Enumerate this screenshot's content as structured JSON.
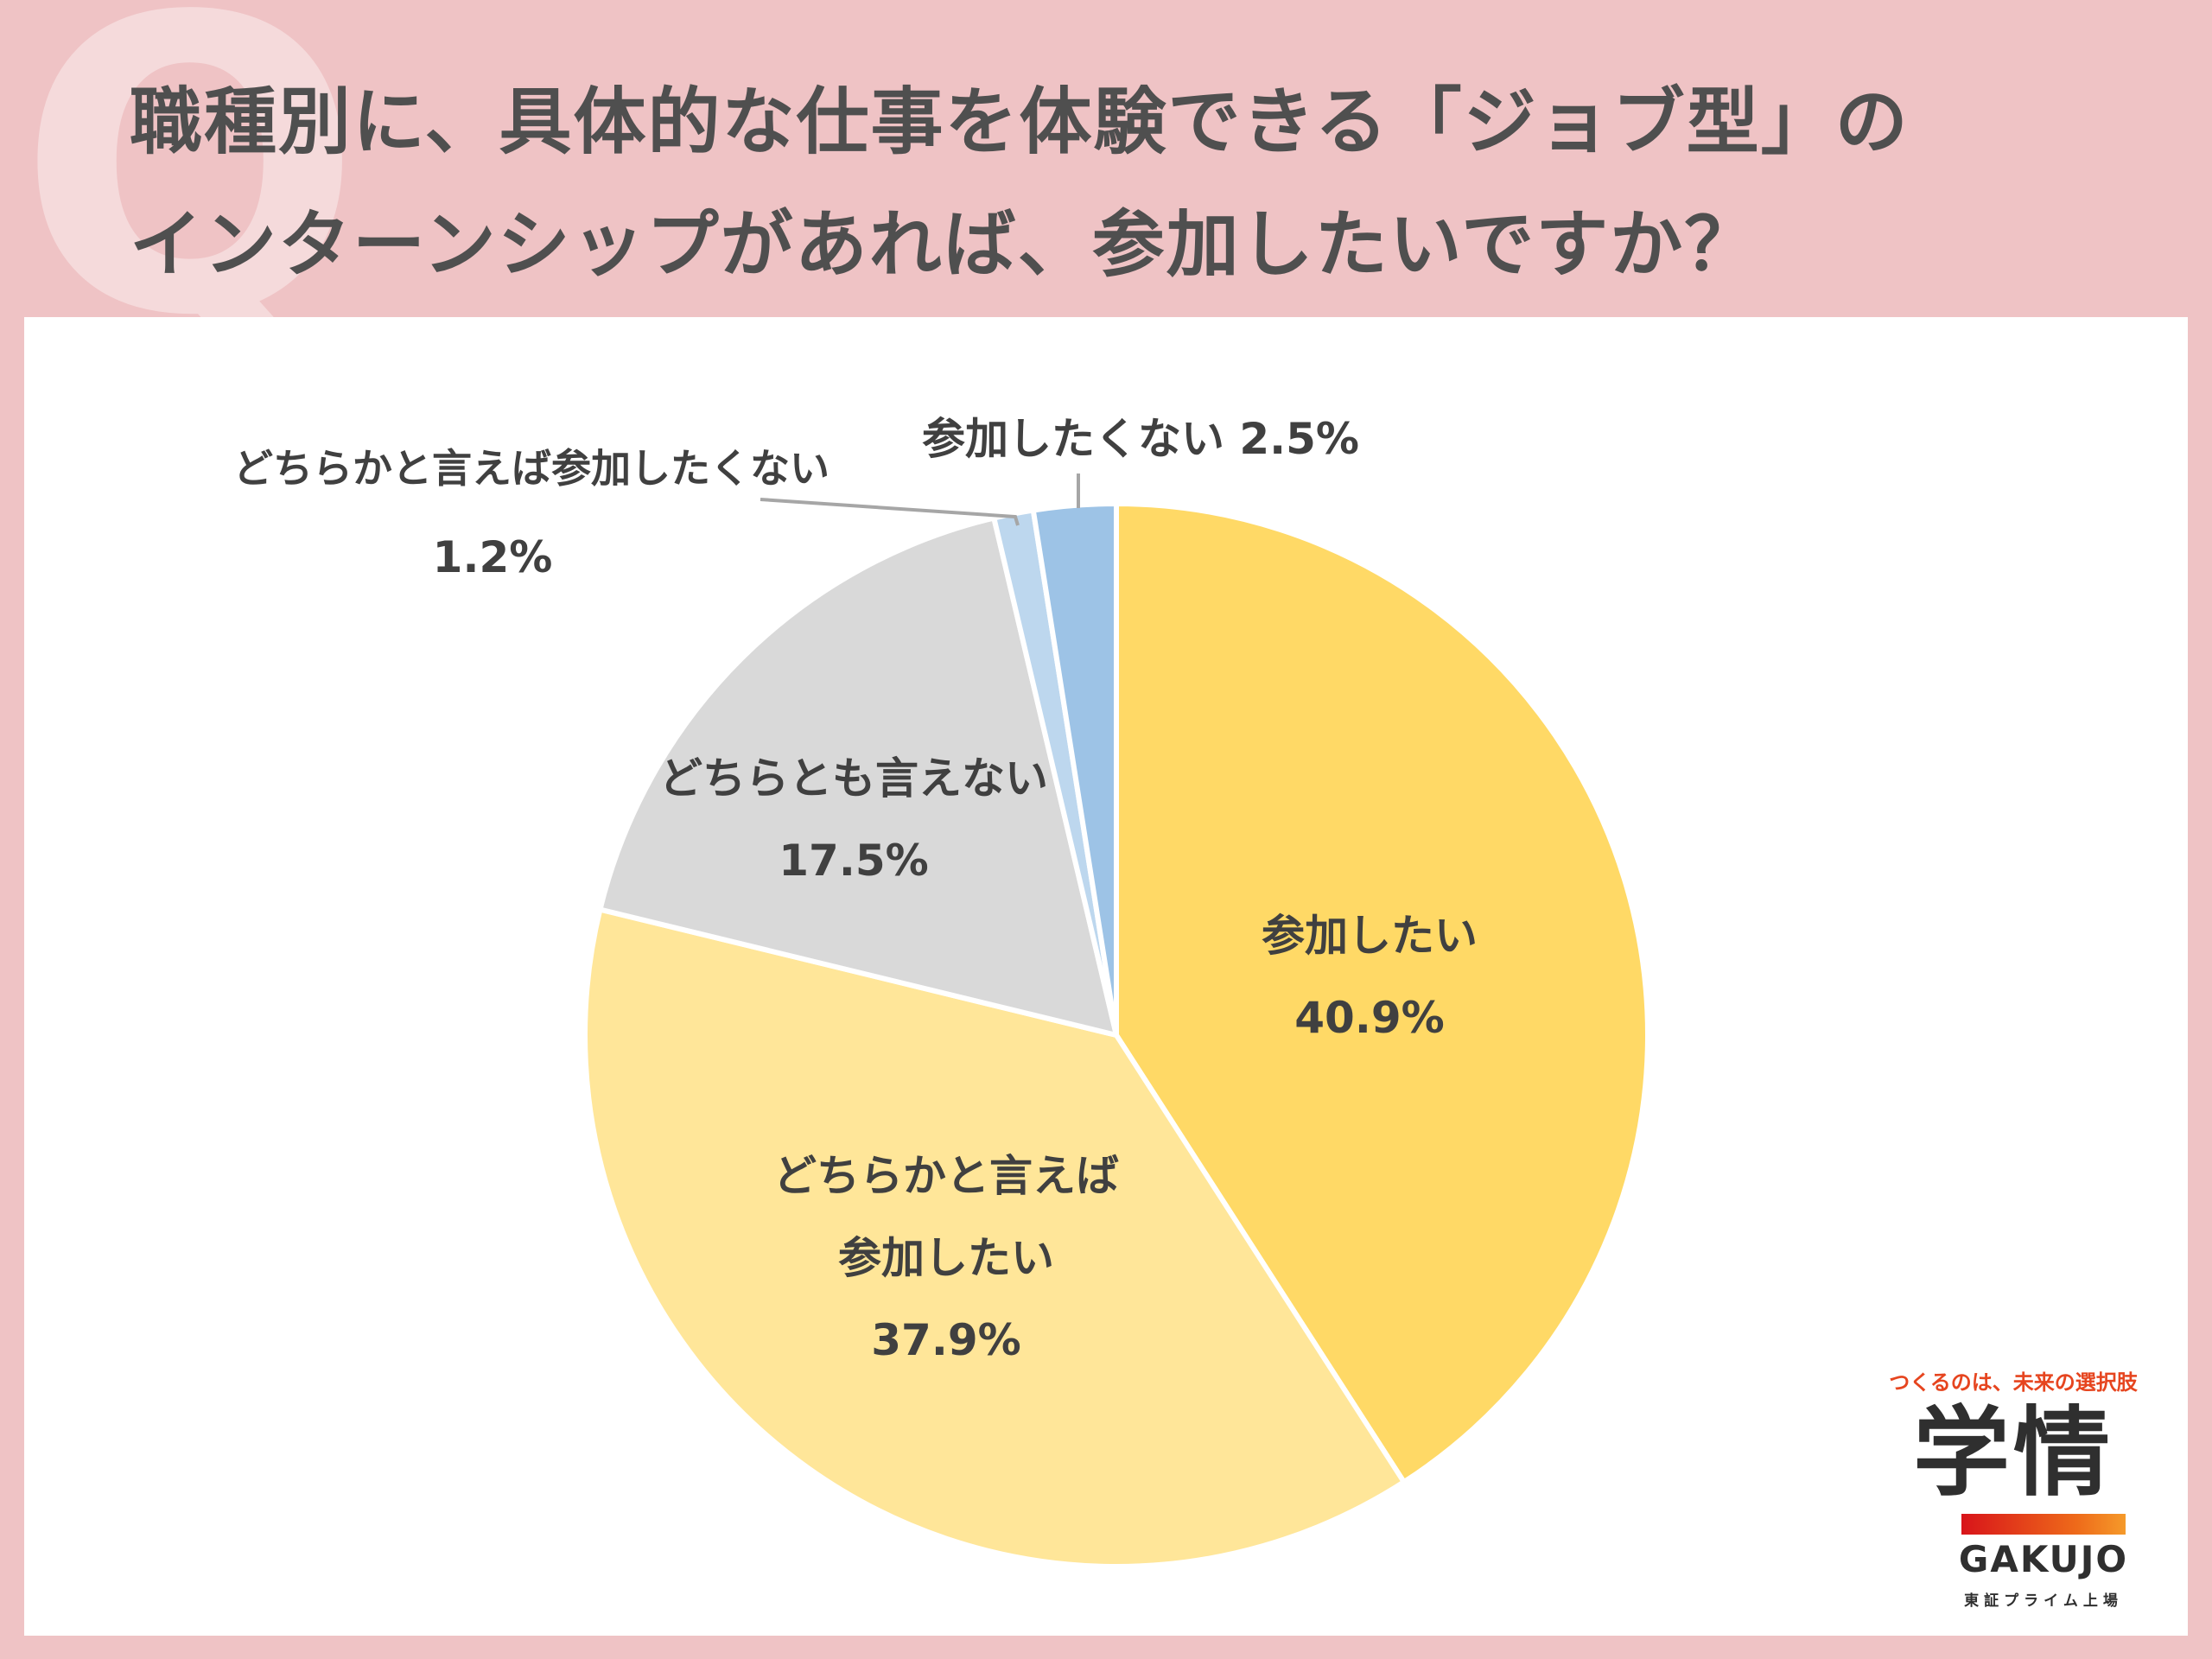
{
  "title": {
    "line1": "職種別に、具体的な仕事を体験できる「ジョブ型」の",
    "line2": "インターンシップがあれば、参加したいですか？"
  },
  "decor": {
    "q_mark": "Q"
  },
  "colors": {
    "background": "#efc3c5",
    "panel": "#ffffff",
    "text": "#404040",
    "slices": [
      "#ffd966",
      "#ffe699",
      "#d9d9d9",
      "#bdd7ee",
      "#9dc3e6"
    ]
  },
  "chart_data": {
    "type": "pie",
    "title": "",
    "start_angle_deg": 0,
    "direction": "clockwise",
    "slices": [
      {
        "label": "参加したい",
        "value": 40.9,
        "value_label": "40.9%",
        "color": "#ffd966"
      },
      {
        "label": "どちらかと言えば参加したい",
        "label_lines": [
          "どちらかと言えば",
          "参加したい"
        ],
        "value": 37.9,
        "value_label": "37.9%",
        "color": "#ffe699"
      },
      {
        "label": "どちらとも言えない",
        "value": 17.5,
        "value_label": "17.5%",
        "color": "#d9d9d9"
      },
      {
        "label": "どちらかと言えば参加したくない",
        "value": 1.2,
        "value_label": "1.2%",
        "color": "#bdd7ee"
      },
      {
        "label": "参加したくない",
        "value": 2.5,
        "value_label": "2.5%",
        "color": "#9dc3e6"
      }
    ],
    "outside_labels": {
      "not_really": "どちらかと言えば参加したくない",
      "not_really_value": "1.2%",
      "no": "参加したくない 2.5%"
    }
  },
  "logo": {
    "tagline": "つくるのは、未来の選択肢",
    "kanji": "学情",
    "brand": "GAKUJO",
    "listing": "東証プライム上場"
  }
}
